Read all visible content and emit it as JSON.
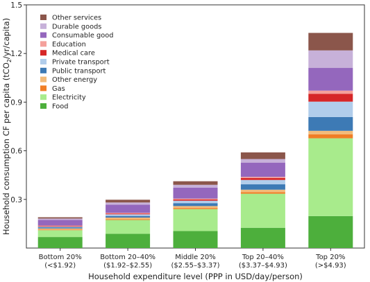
{
  "chart_data": {
    "type": "bar",
    "stacked": true,
    "title": "",
    "xlabel": "Household expenditure level (PPP in USD/day/person)",
    "ylabel_main": "Household consumption CF per capita (tCO",
    "ylabel_sub": "2",
    "ylabel_tail": "/yr/capita)",
    "ylim": [
      0,
      1.5
    ],
    "yticks": [
      0.3,
      0.6,
      0.9,
      1.2,
      1.5
    ],
    "ytick_labels": [
      "0.3",
      "0.6",
      "0.9",
      "1.2",
      "1.5"
    ],
    "grid": false,
    "legend_position": "top-left",
    "categories": [
      [
        "Bottom 20%",
        "(<$1.92)"
      ],
      [
        "Bottom 20–40%",
        "($1.92–$2.55)"
      ],
      [
        "Middle 20%",
        "($2.55–$3.37)"
      ],
      [
        "Top 20–40%",
        "($3.37–$4.93)"
      ],
      [
        "Top 20%",
        "(>$4.93)"
      ]
    ],
    "series": [
      {
        "name": "Food",
        "color": "#4daf3c",
        "values": [
          0.068,
          0.088,
          0.105,
          0.125,
          0.197
        ]
      },
      {
        "name": "Electricity",
        "color": "#a8eb8c",
        "values": [
          0.042,
          0.085,
          0.135,
          0.21,
          0.48
        ]
      },
      {
        "name": "Gas",
        "color": "#f07e26",
        "values": [
          0.004,
          0.005,
          0.007,
          0.01,
          0.024
        ]
      },
      {
        "name": "Other energy",
        "color": "#f2bb7a",
        "values": [
          0.007,
          0.01,
          0.012,
          0.015,
          0.022
        ]
      },
      {
        "name": "Public transport",
        "color": "#3d7ab5",
        "values": [
          0.007,
          0.01,
          0.018,
          0.033,
          0.085
        ]
      },
      {
        "name": "Private transport",
        "color": "#b1cdeb",
        "values": [
          0.004,
          0.01,
          0.015,
          0.027,
          0.095
        ]
      },
      {
        "name": "Medical care",
        "color": "#d62728",
        "values": [
          0.004,
          0.005,
          0.008,
          0.012,
          0.048
        ]
      },
      {
        "name": "Education",
        "color": "#f4a09b",
        "values": [
          0.003,
          0.004,
          0.005,
          0.007,
          0.02
        ]
      },
      {
        "name": "Consumable good",
        "color": "#9467bd",
        "values": [
          0.035,
          0.05,
          0.068,
          0.088,
          0.14
        ]
      },
      {
        "name": "Durable goods",
        "color": "#c7b1d9",
        "values": [
          0.008,
          0.014,
          0.017,
          0.022,
          0.108
        ]
      },
      {
        "name": "Other services",
        "color": "#8b564b",
        "values": [
          0.008,
          0.017,
          0.022,
          0.041,
          0.108
        ]
      }
    ]
  }
}
